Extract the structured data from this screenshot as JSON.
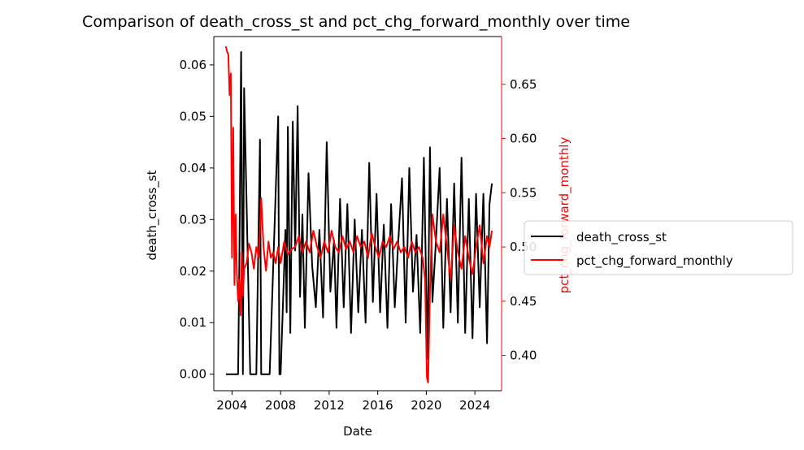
{
  "chart_data": {
    "type": "line",
    "title": "Comparison of death_cross_st and pct_chg_forward_monthly over time",
    "xlabel": "Date",
    "ylabel_left": "death_cross_st",
    "ylabel_right": "pct_chg_forward_monthly",
    "x_ticks": [
      "2004",
      "2008",
      "2012",
      "2016",
      "2020",
      "2024"
    ],
    "x_range": [
      2002.5,
      2026.2
    ],
    "y_left_ticks": [
      "0.00",
      "0.01",
      "0.02",
      "0.03",
      "0.04",
      "0.05",
      "0.06"
    ],
    "y_left_range": [
      -0.0032,
      0.0655
    ],
    "y_right_ticks": [
      "0.40",
      "0.45",
      "0.50",
      "0.55",
      "0.60",
      "0.65"
    ],
    "y_right_range": [
      0.3675,
      0.694
    ],
    "grid": false,
    "legend_placement": "right, outside plot",
    "colors": {
      "left_series": "#000000",
      "right_series": "#ff0000",
      "right_axis": "#ff0000"
    },
    "series": [
      {
        "name": "death_cross_st",
        "axis": "left",
        "x": [
          2003.5,
          2004.0,
          2004.3,
          2004.5,
          2004.6,
          2004.75,
          2004.9,
          2005.0,
          2005.5,
          2006.0,
          2006.3,
          2006.4,
          2006.5,
          2006.6,
          2006.9,
          2007.0,
          2007.1,
          2007.8,
          2007.9,
          2008.0,
          2008.4,
          2008.5,
          2008.6,
          2008.8,
          2009.0,
          2009.2,
          2009.4,
          2009.6,
          2009.8,
          2010.0,
          2010.3,
          2010.6,
          2010.9,
          2011.2,
          2011.5,
          2011.8,
          2012.1,
          2012.4,
          2012.6,
          2012.9,
          2013.2,
          2013.5,
          2013.8,
          2014.1,
          2014.4,
          2014.7,
          2015.0,
          2015.3,
          2015.6,
          2015.9,
          2016.2,
          2016.5,
          2016.8,
          2017.1,
          2017.4,
          2017.7,
          2018.0,
          2018.3,
          2018.6,
          2018.9,
          2019.2,
          2019.5,
          2019.8,
          2020.1,
          2020.3,
          2020.5,
          2020.8,
          2021.1,
          2021.4,
          2021.7,
          2022.0,
          2022.3,
          2022.6,
          2022.9,
          2023.2,
          2023.5,
          2023.8,
          2024.1,
          2024.4,
          2024.7,
          2025.0,
          2025.2,
          2025.4
        ],
        "values": [
          0.0,
          0.0,
          0.0,
          0.0,
          0.021,
          0.0625,
          0.0,
          0.0555,
          0.0,
          0.0,
          0.0455,
          0.0,
          0.0,
          0.0,
          0.0,
          0.0,
          0.0,
          0.05,
          0.0,
          0.0,
          0.028,
          0.012,
          0.048,
          0.008,
          0.049,
          0.024,
          0.052,
          0.015,
          0.031,
          0.009,
          0.039,
          0.021,
          0.013,
          0.028,
          0.011,
          0.045,
          0.016,
          0.026,
          0.009,
          0.034,
          0.013,
          0.033,
          0.008,
          0.03,
          0.012,
          0.028,
          0.01,
          0.041,
          0.014,
          0.035,
          0.012,
          0.029,
          0.009,
          0.033,
          0.013,
          0.026,
          0.038,
          0.01,
          0.04,
          0.016,
          0.027,
          0.008,
          0.042,
          0.003,
          0.044,
          0.014,
          0.026,
          0.04,
          0.009,
          0.034,
          0.012,
          0.037,
          0.01,
          0.042,
          0.008,
          0.034,
          0.007,
          0.035,
          0.013,
          0.035,
          0.006,
          0.033,
          0.037
        ]
      },
      {
        "name": "pct_chg_forward_monthly",
        "axis": "right",
        "x": [
          2003.5,
          2003.6,
          2003.7,
          2003.8,
          2003.9,
          2004.0,
          2004.1,
          2004.2,
          2004.3,
          2004.4,
          2004.5,
          2004.6,
          2004.7,
          2004.8,
          2004.9,
          2005.0,
          2005.2,
          2005.4,
          2005.6,
          2005.8,
          2006.0,
          2006.2,
          2006.4,
          2006.6,
          2006.8,
          2007.0,
          2007.2,
          2007.4,
          2007.6,
          2007.8,
          2008.0,
          2008.3,
          2008.6,
          2008.9,
          2009.2,
          2009.5,
          2009.8,
          2010.1,
          2010.4,
          2010.7,
          2011.0,
          2011.3,
          2011.6,
          2011.9,
          2012.2,
          2012.5,
          2012.8,
          2013.1,
          2013.4,
          2013.7,
          2014.0,
          2014.3,
          2014.6,
          2014.9,
          2015.2,
          2015.5,
          2015.8,
          2016.1,
          2016.4,
          2016.7,
          2017.0,
          2017.3,
          2017.6,
          2017.9,
          2018.2,
          2018.5,
          2018.8,
          2019.1,
          2019.4,
          2019.7,
          2019.9,
          2020.05,
          2020.15,
          2020.3,
          2020.5,
          2020.8,
          2021.1,
          2021.4,
          2021.7,
          2022.0,
          2022.3,
          2022.6,
          2022.9,
          2023.2,
          2023.5,
          2023.8,
          2024.1,
          2024.4,
          2024.7,
          2025.0,
          2025.2,
          2025.4
        ],
        "values": [
          0.685,
          0.68,
          0.677,
          0.64,
          0.66,
          0.49,
          0.61,
          0.465,
          0.53,
          0.475,
          0.45,
          0.47,
          0.437,
          0.495,
          0.455,
          0.48,
          0.485,
          0.503,
          0.495,
          0.48,
          0.5,
          0.49,
          0.545,
          0.5,
          0.478,
          0.505,
          0.49,
          0.495,
          0.485,
          0.5,
          0.485,
          0.505,
          0.493,
          0.498,
          0.5,
          0.51,
          0.495,
          0.505,
          0.495,
          0.515,
          0.5,
          0.49,
          0.505,
          0.495,
          0.515,
          0.5,
          0.495,
          0.51,
          0.498,
          0.505,
          0.495,
          0.51,
          0.5,
          0.505,
          0.49,
          0.513,
          0.5,
          0.49,
          0.505,
          0.5,
          0.51,
          0.498,
          0.505,
          0.495,
          0.5,
          0.49,
          0.505,
          0.495,
          0.5,
          0.49,
          0.47,
          0.38,
          0.375,
          0.46,
          0.53,
          0.505,
          0.495,
          0.53,
          0.5,
          0.47,
          0.52,
          0.495,
          0.48,
          0.51,
          0.49,
          0.475,
          0.5,
          0.52,
          0.485,
          0.51,
          0.5,
          0.515
        ]
      }
    ]
  }
}
